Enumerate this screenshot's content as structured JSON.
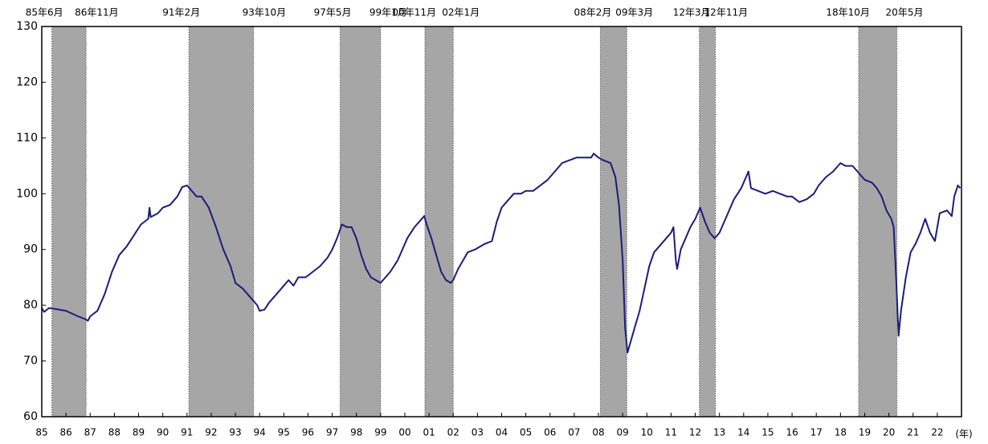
{
  "chart_data": {
    "type": "line",
    "color": "#1c1c7a",
    "xlim": [
      1985,
      2023
    ],
    "ylim": [
      60,
      130
    ],
    "yticks": [
      60,
      70,
      80,
      90,
      100,
      110,
      120,
      130
    ],
    "xticks": [
      {
        "value": 1985,
        "label": "85"
      },
      {
        "value": 1986,
        "label": "86"
      },
      {
        "value": 1987,
        "label": "87"
      },
      {
        "value": 1988,
        "label": "88"
      },
      {
        "value": 1989,
        "label": "89"
      },
      {
        "value": 1990,
        "label": "90"
      },
      {
        "value": 1991,
        "label": "91"
      },
      {
        "value": 1992,
        "label": "92"
      },
      {
        "value": 1993,
        "label": "93"
      },
      {
        "value": 1994,
        "label": "94"
      },
      {
        "value": 1995,
        "label": "95"
      },
      {
        "value": 1996,
        "label": "96"
      },
      {
        "value": 1997,
        "label": "97"
      },
      {
        "value": 1998,
        "label": "98"
      },
      {
        "value": 1999,
        "label": "99"
      },
      {
        "value": 2000,
        "label": "00"
      },
      {
        "value": 2001,
        "label": "01"
      },
      {
        "value": 2002,
        "label": "02"
      },
      {
        "value": 2003,
        "label": "03"
      },
      {
        "value": 2004,
        "label": "04"
      },
      {
        "value": 2005,
        "label": "05"
      },
      {
        "value": 2006,
        "label": "06"
      },
      {
        "value": 2007,
        "label": "07"
      },
      {
        "value": 2008,
        "label": "08"
      },
      {
        "value": 2009,
        "label": "09"
      },
      {
        "value": 2010,
        "label": "10"
      },
      {
        "value": 2011,
        "label": "11"
      },
      {
        "value": 2012,
        "label": "12"
      },
      {
        "value": 2013,
        "label": "13"
      },
      {
        "value": 2014,
        "label": "14"
      },
      {
        "value": 2015,
        "label": "15"
      },
      {
        "value": 2016,
        "label": "16"
      },
      {
        "value": 2017,
        "label": "17"
      },
      {
        "value": 2018,
        "label": "18"
      },
      {
        "value": 2019,
        "label": "19"
      },
      {
        "value": 2020,
        "label": "20"
      },
      {
        "value": 2021,
        "label": "21"
      },
      {
        "value": 2022,
        "label": "22"
      }
    ],
    "x_unit": "(年)",
    "shaded_periods": [
      {
        "start": {
          "value": 1985.42,
          "label": "85年6月"
        },
        "end": {
          "value": 1986.83,
          "label": "86年11月"
        }
      },
      {
        "start": {
          "value": 1991.08,
          "label": "91年2月"
        },
        "end": {
          "value": 1993.75,
          "label": "93年10月"
        }
      },
      {
        "start": {
          "value": 1997.33,
          "label": "97年5月"
        },
        "end": {
          "value": 1999.0,
          "label": "99年1月"
        }
      },
      {
        "start": {
          "value": 2000.83,
          "label": "00年11月"
        },
        "end": {
          "value": 2002.0,
          "label": "02年1月"
        }
      },
      {
        "start": {
          "value": 2008.08,
          "label": "08年2月"
        },
        "end": {
          "value": 2009.17,
          "label": "09年3月"
        }
      },
      {
        "start": {
          "value": 2012.17,
          "label": "12年3月"
        },
        "end": {
          "value": 2012.83,
          "label": "12年11月"
        }
      },
      {
        "start": {
          "value": 2018.75,
          "label": "18年10月"
        },
        "end": {
          "value": 2020.33,
          "label": "20年5月"
        }
      }
    ],
    "x": [
      1985.0,
      1985.1,
      1985.3,
      1985.6,
      1986.0,
      1986.5,
      1986.8,
      1986.9,
      1987.0,
      1987.3,
      1987.6,
      1987.9,
      1988.2,
      1988.5,
      1988.8,
      1989.1,
      1989.4,
      1989.45,
      1989.5,
      1989.8,
      1990.0,
      1990.3,
      1990.6,
      1990.8,
      1991.0,
      1991.2,
      1991.4,
      1991.6,
      1991.9,
      1992.2,
      1992.5,
      1992.8,
      1993.0,
      1993.3,
      1993.6,
      1993.9,
      1994.0,
      1994.2,
      1994.4,
      1994.7,
      1995.0,
      1995.2,
      1995.4,
      1995.6,
      1995.9,
      1996.2,
      1996.5,
      1996.8,
      1997.0,
      1997.2,
      1997.4,
      1997.6,
      1997.8,
      1998.0,
      1998.2,
      1998.4,
      1998.6,
      1998.8,
      1999.0,
      1999.2,
      1999.4,
      1999.7,
      1999.9,
      2000.1,
      2000.4,
      2000.6,
      2000.8,
      2000.9,
      2001.1,
      2001.3,
      2001.5,
      2001.7,
      2001.9,
      2002.0,
      2002.2,
      2002.4,
      2002.6,
      2002.9,
      2003.1,
      2003.3,
      2003.6,
      2003.8,
      2004.0,
      2004.2,
      2004.5,
      2004.8,
      2005.0,
      2005.3,
      2005.6,
      2005.9,
      2006.2,
      2006.5,
      2006.8,
      2007.1,
      2007.4,
      2007.7,
      2007.8,
      2008.0,
      2008.2,
      2008.5,
      2008.7,
      2008.85,
      2009.0,
      2009.1,
      2009.2,
      2009.3,
      2009.5,
      2009.7,
      2009.9,
      2010.1,
      2010.3,
      2010.5,
      2010.8,
      2011.0,
      2011.1,
      2011.2,
      2011.25,
      2011.4,
      2011.6,
      2011.8,
      2012.0,
      2012.2,
      2012.4,
      2012.6,
      2012.8,
      2013.0,
      2013.3,
      2013.6,
      2013.9,
      2014.1,
      2014.2,
      2014.3,
      2014.6,
      2014.9,
      2015.2,
      2015.5,
      2015.8,
      2016.0,
      2016.3,
      2016.6,
      2016.9,
      2017.1,
      2017.4,
      2017.7,
      2018.0,
      2018.2,
      2018.5,
      2018.8,
      2019.0,
      2019.3,
      2019.5,
      2019.7,
      2019.9,
      2020.1,
      2020.2,
      2020.3,
      2020.4,
      2020.5,
      2020.7,
      2020.9,
      2021.1,
      2021.3,
      2021.5,
      2021.7,
      2021.9,
      2022.1,
      2022.4,
      2022.6,
      2022.7,
      2022.85,
      2022.95
    ],
    "values": [
      79.5,
      78.8,
      79.5,
      79.3,
      79,
      78,
      77.5,
      77.2,
      78,
      79,
      82,
      86,
      89,
      90.5,
      92.5,
      94.5,
      95.5,
      97.5,
      95.8,
      96.5,
      97.5,
      98,
      99.5,
      101.2,
      101.5,
      100.5,
      99.5,
      99.5,
      97.5,
      94,
      90,
      87,
      84,
      83,
      81.5,
      80,
      79,
      79.2,
      80.5,
      82,
      83.5,
      84.5,
      83.5,
      85,
      85,
      86,
      87,
      88.5,
      90,
      92,
      94.5,
      94,
      94,
      92,
      89,
      86.5,
      85,
      84.5,
      84,
      85,
      86,
      88,
      90,
      92,
      94,
      95,
      96,
      94.5,
      92,
      89,
      86,
      84.5,
      84,
      84.5,
      86.5,
      88,
      89.5,
      90,
      90.5,
      91,
      91.5,
      95,
      97.5,
      98.5,
      100,
      100,
      100.5,
      100.5,
      101.5,
      102.5,
      104,
      105.5,
      106,
      106.5,
      106.5,
      106.5,
      107.2,
      106.5,
      106,
      105.5,
      103,
      98,
      88,
      76,
      71.5,
      73,
      76,
      79,
      83,
      87,
      89.5,
      90.5,
      92,
      93,
      94,
      88,
      86.5,
      90,
      92,
      94,
      95.5,
      97.5,
      95,
      93,
      92,
      93,
      96,
      99,
      101,
      103,
      104,
      101,
      100.5,
      100,
      100.5,
      100,
      99.5,
      99.5,
      98.5,
      99,
      100,
      101.5,
      103,
      104,
      105.5,
      105,
      105,
      103.5,
      102.5,
      102,
      101,
      99.5,
      97,
      95.5,
      94,
      85,
      74.5,
      79,
      85,
      89.5,
      91,
      93,
      95.5,
      93,
      91.5,
      96.5,
      97,
      96,
      99.5,
      101.5,
      101
    ]
  }
}
